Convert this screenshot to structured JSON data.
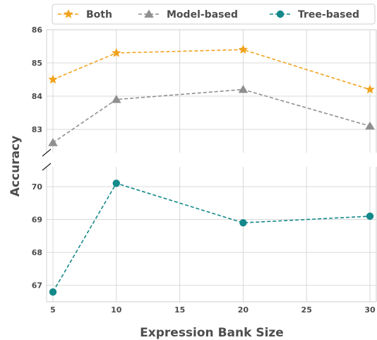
{
  "chart_data": {
    "type": "line",
    "xlabel": "Expression Bank Size",
    "ylabel": "Accuracy",
    "x_ticks": [
      5,
      10,
      15,
      20,
      25,
      30
    ],
    "xlim": [
      4.5,
      30.5
    ],
    "upper_panel": {
      "ylim": [
        82.3,
        86.0
      ],
      "y_ticks": [
        83,
        84,
        85,
        86
      ]
    },
    "lower_panel": {
      "ylim": [
        66.5,
        70.6
      ],
      "y_ticks": [
        67,
        68,
        69,
        70
      ]
    },
    "grid": true,
    "legend_position": "top",
    "series": [
      {
        "name": "Both",
        "panel": "upper",
        "marker": "star",
        "color": "#f0a31e",
        "x": [
          5,
          10,
          20,
          30
        ],
        "y": [
          84.5,
          85.3,
          85.4,
          84.2
        ]
      },
      {
        "name": "Model-based",
        "panel": "upper",
        "marker": "triangle",
        "color": "#8f8f8f",
        "x": [
          5,
          10,
          20,
          30
        ],
        "y": [
          82.6,
          83.9,
          84.2,
          83.1
        ]
      },
      {
        "name": "Tree-based",
        "panel": "lower",
        "marker": "circle",
        "color": "#13898a",
        "x": [
          5,
          10,
          20,
          30
        ],
        "y": [
          66.8,
          70.1,
          68.9,
          69.1
        ]
      }
    ]
  }
}
